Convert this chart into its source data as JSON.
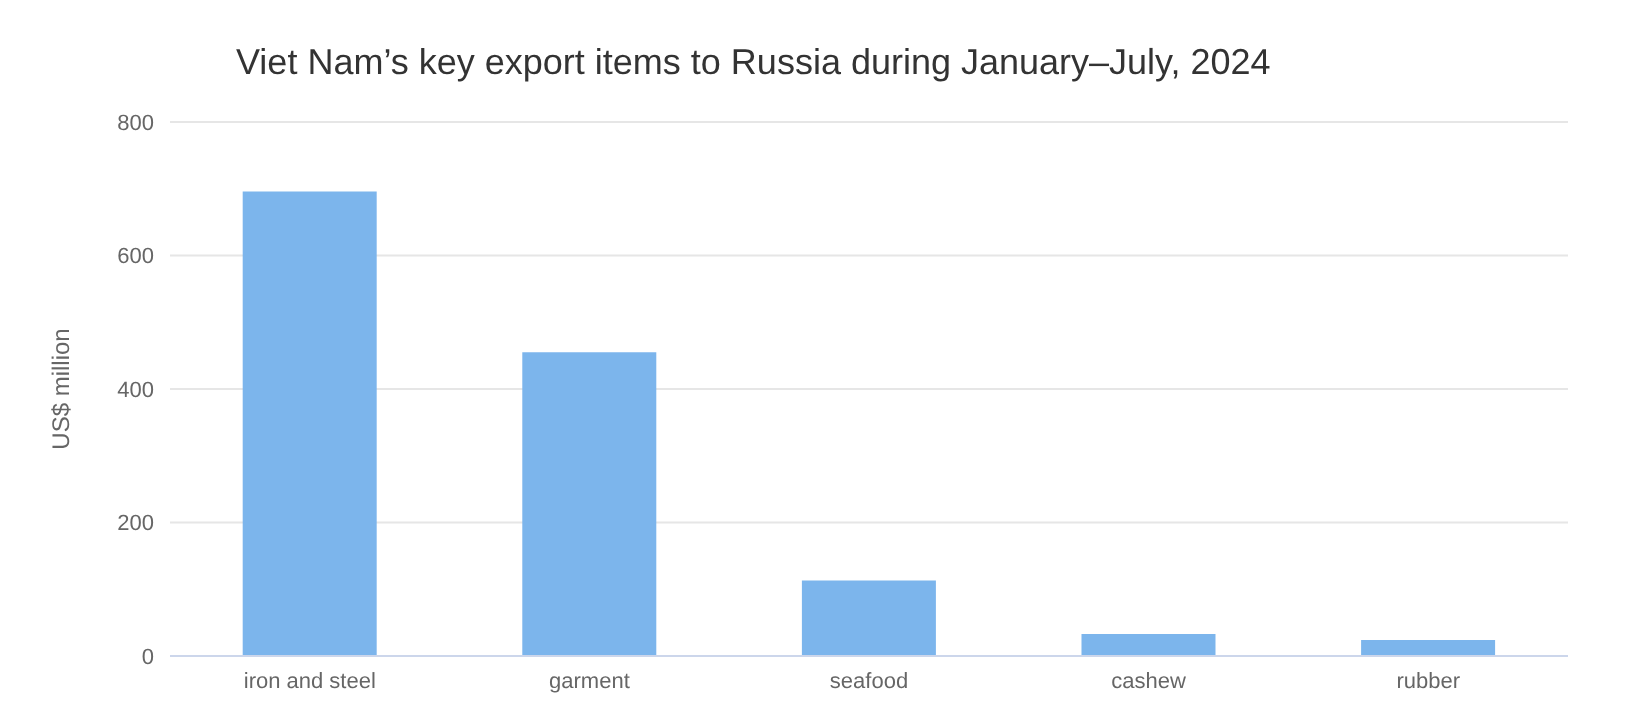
{
  "chart_data": {
    "type": "bar",
    "title": "Viet Nam’s key export items to Russia during January–July, 2024",
    "ylabel": "US$ million",
    "categories": [
      "iron and steel",
      "garment",
      "seafood",
      "cashew",
      "rubber"
    ],
    "values": [
      696,
      455,
      113,
      33,
      24
    ],
    "color": "#7cb5ec",
    "ylim": [
      0,
      800
    ],
    "yticks": [
      0,
      200,
      400,
      600,
      800
    ],
    "grid": "y"
  }
}
